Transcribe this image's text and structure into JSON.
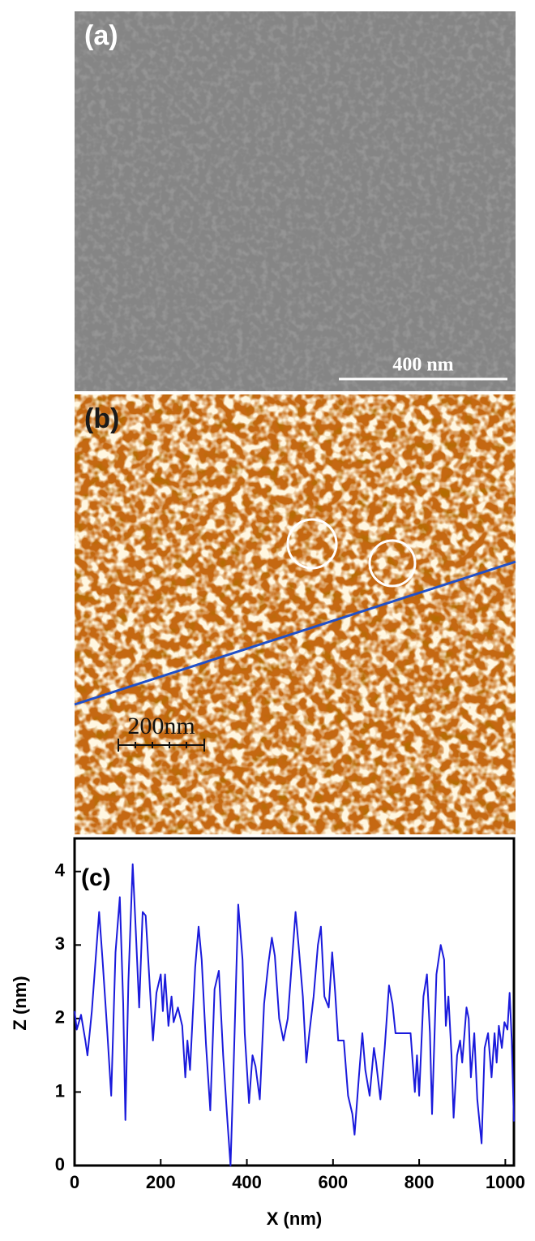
{
  "panels": [
    {
      "label": "(a)",
      "scale_bar": "400 nm"
    },
    {
      "label": "(b)",
      "scale_bar": "200nm"
    }
  ],
  "chart_data": {
    "type": "line",
    "label": "(c)",
    "x_label": "X (nm)",
    "y_label": "Z (nm)",
    "xlim": [
      0,
      1020
    ],
    "ylim": [
      0,
      4.45
    ],
    "xticks": [
      0,
      200,
      400,
      600,
      800,
      1000
    ],
    "yticks": [
      0,
      1,
      2,
      3,
      4
    ],
    "series": [
      {
        "color": "#1a1adc",
        "x": [
          0,
          5,
          15,
          25,
          30,
          40,
          50,
          57,
          65,
          75,
          85,
          95,
          105,
          113,
          118,
          125,
          135,
          142,
          150,
          158,
          165,
          175,
          182,
          190,
          200,
          205,
          210,
          218,
          225,
          230,
          240,
          250,
          257,
          262,
          268,
          280,
          288,
          295,
          305,
          315,
          325,
          335,
          345,
          355,
          362,
          370,
          380,
          390,
          395,
          405,
          413,
          420,
          430,
          440,
          450,
          458,
          465,
          475,
          485,
          495,
          505,
          513,
          520,
          530,
          538,
          545,
          555,
          565,
          572,
          580,
          590,
          598,
          605,
          612,
          625,
          635,
          645,
          650,
          660,
          668,
          675,
          685,
          695,
          700,
          710,
          720,
          730,
          738,
          745,
          780,
          790,
          795,
          800,
          810,
          818,
          825,
          830,
          840,
          850,
          858,
          862,
          868,
          875,
          880,
          888,
          895,
          900,
          910,
          915,
          920,
          928,
          935,
          945,
          952,
          960,
          968,
          975,
          980,
          985,
          992,
          998,
          1005,
          1010,
          1015,
          1020
        ],
        "values": [
          2.1,
          1.85,
          2.05,
          1.7,
          1.5,
          2.1,
          2.9,
          3.45,
          2.8,
          1.9,
          0.95,
          2.9,
          3.65,
          2.2,
          0.62,
          2.5,
          4.1,
          3.2,
          2.15,
          3.45,
          3.4,
          2.4,
          1.7,
          2.35,
          2.6,
          2.1,
          2.6,
          1.9,
          2.3,
          1.95,
          2.15,
          1.9,
          1.2,
          1.7,
          1.3,
          2.7,
          3.25,
          2.8,
          1.65,
          0.75,
          2.4,
          2.65,
          1.5,
          0.6,
          0.0,
          1.5,
          3.55,
          2.8,
          1.8,
          0.85,
          1.5,
          1.35,
          0.9,
          2.2,
          2.75,
          3.1,
          2.85,
          2.0,
          1.7,
          2.0,
          2.8,
          3.45,
          3.0,
          2.3,
          1.4,
          1.8,
          2.3,
          3.0,
          3.25,
          2.3,
          2.15,
          2.9,
          2.35,
          1.7,
          1.7,
          0.95,
          0.7,
          0.42,
          1.2,
          1.8,
          1.3,
          0.95,
          1.6,
          1.4,
          0.9,
          1.6,
          2.45,
          2.2,
          1.8,
          1.8,
          1.0,
          1.5,
          0.95,
          2.3,
          2.6,
          1.8,
          0.7,
          2.6,
          3.0,
          2.8,
          1.9,
          2.3,
          1.5,
          0.65,
          1.5,
          1.7,
          1.4,
          2.15,
          2.0,
          1.2,
          1.8,
          0.9,
          0.3,
          1.6,
          1.8,
          1.2,
          1.8,
          1.4,
          1.9,
          1.6,
          1.95,
          1.85,
          2.35,
          1.7,
          0.6
        ]
      }
    ]
  }
}
